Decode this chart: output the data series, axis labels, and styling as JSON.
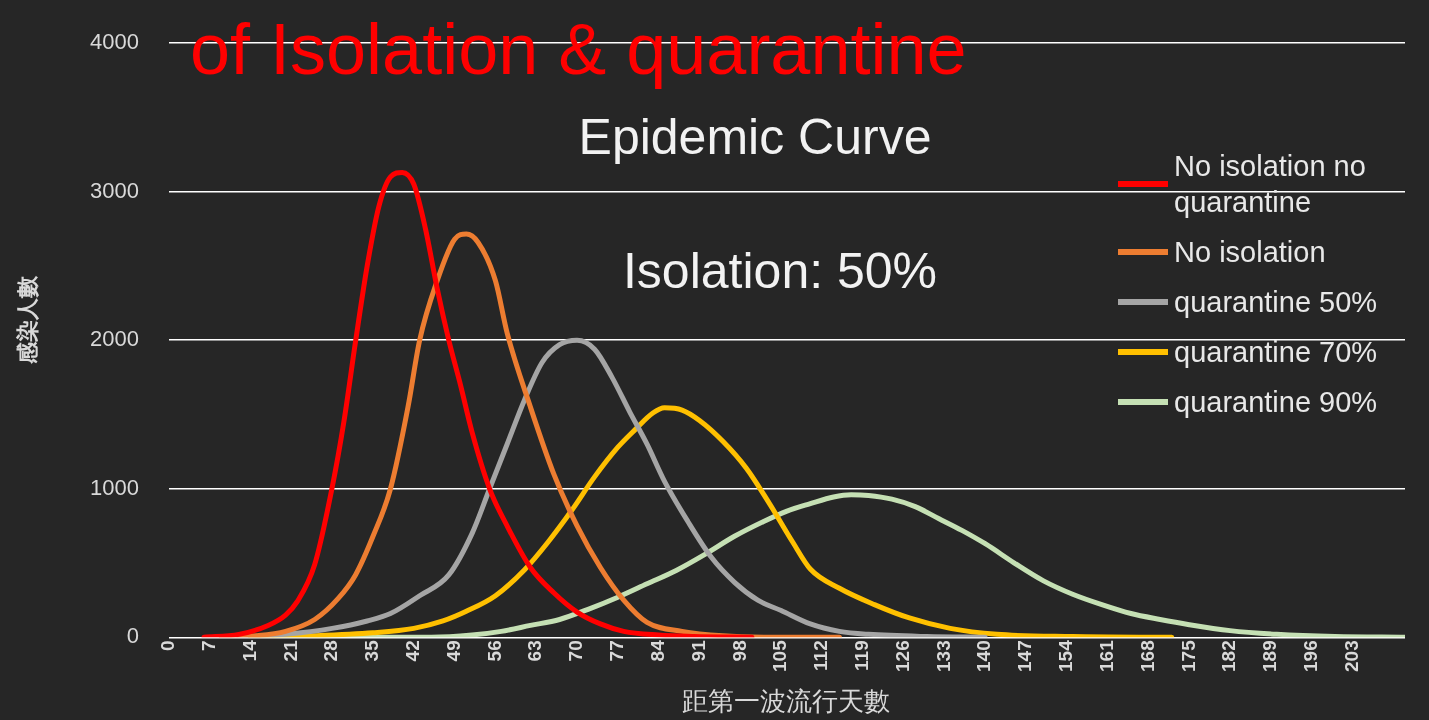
{
  "chart_data": {
    "type": "line",
    "title": "Epidemic Curve",
    "subtitle": "of Isolation & quarantine",
    "annotations": [
      "Isolation: 50%"
    ],
    "xlabel": "距第一波流行天數",
    "ylabel": "感染人數",
    "xlim": [
      0,
      212
    ],
    "xticks": [
      0,
      7,
      14,
      21,
      28,
      35,
      42,
      49,
      56,
      63,
      70,
      77,
      84,
      91,
      98,
      105,
      112,
      119,
      126,
      133,
      140,
      147,
      154,
      161,
      168,
      175,
      182,
      189,
      196,
      203
    ],
    "ylim": [
      0,
      4000
    ],
    "yticks": [
      0,
      1000,
      2000,
      3000,
      4000
    ],
    "grid": "y",
    "legend": "right",
    "marker": "none",
    "line_style": "solid",
    "series": [
      {
        "name": "No isolation no quarantine",
        "color": "#ff0000",
        "x": [
          6,
          12,
          17,
          20,
          22,
          25,
          28,
          30,
          32,
          34,
          36,
          38,
          40,
          42,
          44,
          46,
          48,
          50,
          52,
          55,
          58,
          62,
          66,
          70,
          74,
          78,
          84,
          90,
          100
        ],
        "values": [
          0,
          20,
          80,
          150,
          240,
          490,
          1010,
          1450,
          1990,
          2500,
          2900,
          3100,
          3130,
          3050,
          2750,
          2350,
          2000,
          1700,
          1380,
          1000,
          750,
          470,
          300,
          170,
          90,
          40,
          15,
          5,
          0
        ]
      },
      {
        "name": "No isolation",
        "color": "#ed7d31",
        "x": [
          9,
          15,
          20,
          25,
          29,
          32,
          35,
          38,
          41,
          43,
          46,
          49,
          51,
          53,
          56,
          58,
          62,
          66,
          70,
          74,
          78,
          82,
          88,
          95,
          105,
          115
        ],
        "values": [
          0,
          10,
          40,
          120,
          260,
          420,
          680,
          1000,
          1550,
          2000,
          2400,
          2680,
          2715,
          2660,
          2400,
          2050,
          1550,
          1100,
          750,
          470,
          250,
          100,
          40,
          10,
          0,
          0
        ]
      },
      {
        "name": "quarantine 50%",
        "color": "#a5a5a5",
        "x": [
          12,
          20,
          28,
          34,
          38,
          43,
          48,
          52,
          55,
          58,
          61,
          64,
          67,
          70,
          73,
          76,
          79,
          82,
          85,
          89,
          93,
          97,
          101,
          105,
          110,
          115,
          120,
          130,
          140
        ],
        "values": [
          0,
          20,
          60,
          110,
          160,
          280,
          420,
          700,
          1000,
          1300,
          1600,
          1850,
          1970,
          2000,
          1940,
          1750,
          1520,
          1300,
          1050,
          780,
          540,
          370,
          250,
          180,
          90,
          40,
          20,
          5,
          0
        ]
      },
      {
        "name": "quarantine 70%",
        "color": "#ffc000",
        "x": [
          14,
          25,
          35,
          42,
          47,
          51,
          56,
          61,
          65,
          69,
          73,
          77,
          80,
          83,
          85,
          88,
          91,
          95,
          99,
          103,
          107,
          110,
          115,
          121,
          127,
          134,
          142,
          155,
          172
        ],
        "values": [
          0,
          10,
          30,
          60,
          110,
          175,
          280,
          455,
          640,
          850,
          1080,
          1280,
          1400,
          1510,
          1545,
          1530,
          1460,
          1320,
          1140,
          900,
          640,
          460,
          330,
          220,
          130,
          60,
          20,
          5,
          0
        ]
      },
      {
        "name": "quarantine 90%",
        "color": "#c5e0b4",
        "x": [
          18,
          45,
          52,
          57,
          62,
          67,
          72,
          77,
          82,
          87,
          92,
          97,
          102,
          106,
          110,
          114,
          117,
          120,
          124,
          128,
          132,
          136,
          140,
          145,
          150,
          155,
          160,
          165,
          170,
          175,
          182,
          190,
          200,
          212
        ],
        "values": [
          0,
          0,
          15,
          40,
          80,
          120,
          190,
          270,
          360,
          450,
          560,
          680,
          780,
          850,
          900,
          945,
          960,
          955,
          930,
          880,
          800,
          720,
          630,
          500,
          380,
          290,
          220,
          160,
          120,
          85,
          45,
          20,
          5,
          0
        ]
      }
    ]
  }
}
